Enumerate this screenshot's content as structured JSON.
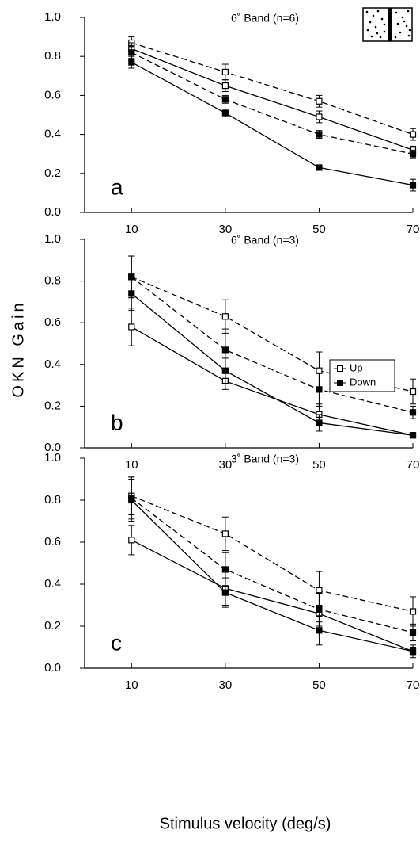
{
  "ylabel": "OKN Gain",
  "xlabel": "Stimulus velocity (deg/s)",
  "chart_data": [
    {
      "type": "line",
      "title": "6˚ Band (n=6)",
      "label": "a",
      "color": "#000000",
      "x": [
        10,
        30,
        50,
        70
      ],
      "xlim": [
        0,
        70
      ],
      "xticks": [
        10,
        30,
        50,
        70
      ],
      "ylim": [
        0,
        1
      ],
      "yticks": [
        {
          "value": 0,
          "label": "0.0"
        },
        0.2,
        0.4,
        0.6,
        0.8,
        {
          "value": 1,
          "label": "1.0"
        }
      ],
      "series": [
        {
          "marker": "open",
          "dashed": true,
          "values": [
            0.87,
            0.72,
            0.57,
            0.4
          ],
          "errors": [
            0.03,
            0.04,
            0.03,
            0.03
          ]
        },
        {
          "marker": "open",
          "dashed": false,
          "values": [
            0.84,
            0.65,
            0.49,
            0.32
          ],
          "errors": [
            0.03,
            0.03,
            0.03,
            0.02
          ]
        },
        {
          "marker": "filled",
          "dashed": true,
          "values": [
            0.82,
            0.58,
            0.4,
            0.3
          ],
          "errors": [
            0.03,
            0.02,
            0.02,
            0.02
          ]
        },
        {
          "marker": "filled",
          "dashed": false,
          "values": [
            0.77,
            0.51,
            0.23,
            0.14
          ],
          "errors": [
            0.03,
            0.02,
            0.01,
            0.03
          ]
        }
      ]
    },
    {
      "type": "line",
      "title": "6˚ Band (n=3)",
      "label": "b",
      "color": "#000000",
      "x": [
        10,
        30,
        50,
        70
      ],
      "xlim": [
        0,
        70
      ],
      "xticks": [
        10,
        30,
        50,
        70
      ],
      "ylim": [
        0,
        1
      ],
      "yticks": [
        {
          "value": 0,
          "label": "0.0"
        },
        0.2,
        0.4,
        0.6,
        0.8,
        {
          "value": 1,
          "label": "1.0"
        }
      ],
      "legend": [
        {
          "label": "Up",
          "marker": "open"
        },
        {
          "label": "Down",
          "marker": "filled"
        }
      ],
      "series": [
        {
          "marker": "open",
          "dashed": true,
          "values": [
            0.82,
            0.63,
            0.37,
            0.27
          ],
          "errors": [
            0.1,
            0.08,
            0.09,
            0.06
          ]
        },
        {
          "marker": "open",
          "dashed": false,
          "values": [
            0.58,
            0.32,
            0.16,
            0.06
          ],
          "errors": [
            0.09,
            0.04,
            0.05,
            0.01
          ]
        },
        {
          "marker": "filled",
          "dashed": true,
          "values": [
            0.82,
            0.47,
            0.28,
            0.17
          ],
          "errors": [
            0.1,
            0.1,
            0.08,
            0.03
          ]
        },
        {
          "marker": "filled",
          "dashed": false,
          "values": [
            0.74,
            0.37,
            0.12,
            0.06
          ],
          "errors": [
            0.08,
            0.06,
            0.04,
            0.01
          ]
        }
      ]
    },
    {
      "type": "line",
      "title": "3˚ Band (n=3)",
      "label": "c",
      "color": "#000000",
      "x": [
        10,
        30,
        50,
        70
      ],
      "xlim": [
        0,
        70
      ],
      "xticks": [
        10,
        30,
        50,
        70
      ],
      "ylim": [
        0,
        1
      ],
      "yticks": [
        {
          "value": 0,
          "label": "0.0"
        },
        0.2,
        0.4,
        0.6,
        0.8,
        {
          "value": 1,
          "label": "1.0"
        }
      ],
      "series": [
        {
          "marker": "open",
          "dashed": true,
          "values": [
            0.82,
            0.64,
            0.37,
            0.27
          ],
          "errors": [
            0.09,
            0.08,
            0.09,
            0.07
          ]
        },
        {
          "marker": "open",
          "dashed": false,
          "values": [
            0.61,
            0.38,
            0.26,
            0.08
          ],
          "errors": [
            0.07,
            0.08,
            0.04,
            0.02
          ]
        },
        {
          "marker": "filled",
          "dashed": true,
          "values": [
            0.81,
            0.47,
            0.28,
            0.17
          ],
          "errors": [
            0.1,
            0.08,
            0.08,
            0.04
          ]
        },
        {
          "marker": "filled",
          "dashed": false,
          "values": [
            0.8,
            0.36,
            0.18,
            0.08
          ],
          "errors": [
            0.1,
            0.07,
            0.07,
            0.03
          ]
        }
      ]
    }
  ]
}
